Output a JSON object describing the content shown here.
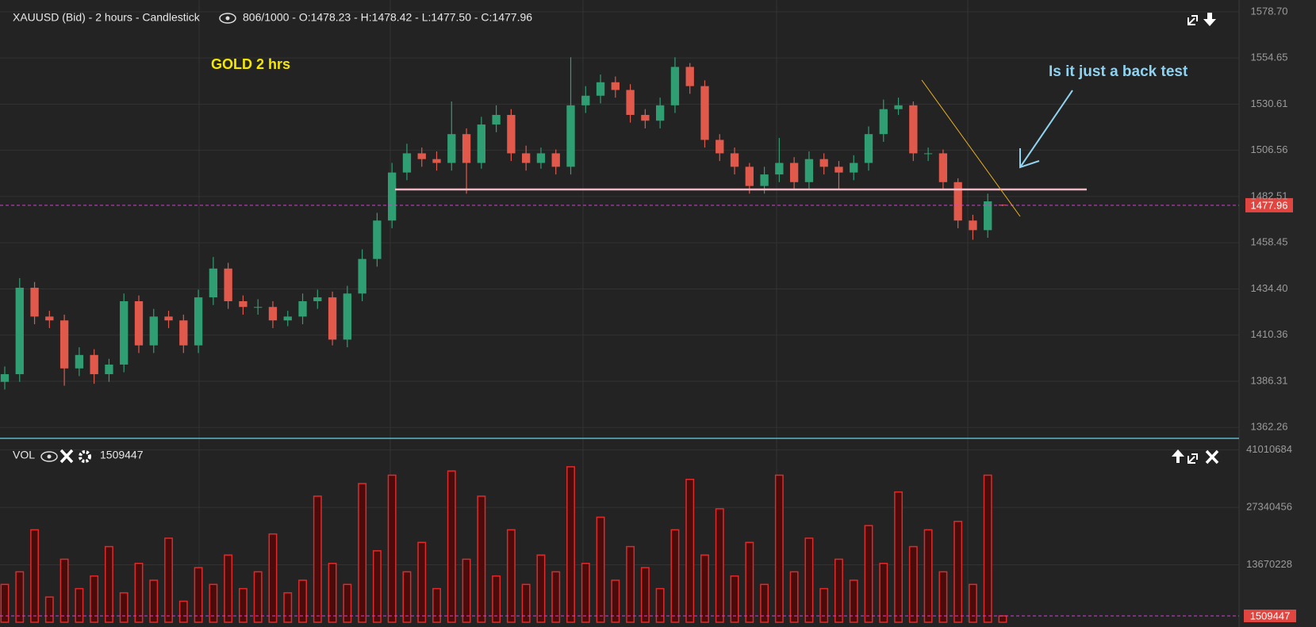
{
  "chart_data": [
    {
      "type": "candlestick",
      "title": "XAUUSD (Bid) - 2 hours - Candlestick",
      "info": "806/1000 - O:1478.23 - H:1478.42 - L:1477.50 - C:1477.96",
      "annotations": [
        "GOLD  2 hrs",
        "Is it just a back test"
      ],
      "up_color": "#2f9e72",
      "down_color": "#e0594b",
      "ylim": [
        1357,
        1583.6
      ],
      "yticks": [
        {
          "value": 1578.7,
          "label": "1578.70"
        },
        1554.65,
        1530.61,
        1506.56,
        1482.51,
        1458.45,
        {
          "value": 1434.4,
          "label": "1434.40"
        },
        1410.36,
        1386.31,
        1362.26
      ],
      "open": [
        1386,
        1390,
        1435,
        1420,
        1418,
        1393,
        1400,
        1390,
        1395,
        1428,
        1405,
        1420,
        1418,
        1405,
        1430,
        1445,
        1428,
        1425,
        1425,
        1418,
        1420,
        1428,
        1430,
        1408,
        1432,
        1450,
        1470,
        1495,
        1505,
        1502,
        1500,
        1515,
        1500,
        1520,
        1525,
        1505,
        1500,
        1505,
        1498,
        1530,
        1535,
        1542,
        1538,
        1525,
        1522,
        1530,
        1550,
        1540,
        1512,
        1505,
        1498,
        1488,
        1494,
        1500,
        1490,
        1502,
        1498,
        1495,
        1500,
        1515,
        1528,
        1530,
        1505,
        1505,
        1490,
        1470,
        1465,
        1478.23
      ],
      "high": [
        1394,
        1440,
        1438,
        1423,
        1421,
        1404,
        1403,
        1398,
        1432,
        1431,
        1424,
        1423,
        1421,
        1434,
        1451,
        1448,
        1431,
        1429,
        1428,
        1423,
        1432,
        1434,
        1433,
        1436,
        1455,
        1474,
        1500,
        1510,
        1508,
        1506,
        1532,
        1518,
        1524,
        1530,
        1528,
        1509,
        1508,
        1507,
        1555,
        1540,
        1546,
        1545,
        1541,
        1528,
        1534,
        1555,
        1552,
        1543,
        1515,
        1508,
        1500,
        1498,
        1513,
        1503,
        1506,
        1505,
        1501,
        1504,
        1519,
        1533,
        1534,
        1532,
        1508,
        1507,
        1492,
        1473,
        1484,
        1478.42
      ],
      "low": [
        1382,
        1386,
        1416,
        1414,
        1384,
        1389,
        1385,
        1386,
        1391,
        1401,
        1401,
        1414,
        1401,
        1401,
        1426,
        1424,
        1421,
        1421,
        1414,
        1415,
        1416,
        1424,
        1405,
        1404,
        1428,
        1446,
        1466,
        1491,
        1498,
        1496,
        1496,
        1484,
        1497,
        1516,
        1501,
        1496,
        1497,
        1494,
        1494,
        1526,
        1531,
        1534,
        1521,
        1518,
        1518,
        1526,
        1536,
        1508,
        1501,
        1494,
        1484,
        1484,
        1490,
        1486,
        1486,
        1494,
        1486,
        1491,
        1496,
        1511,
        1525,
        1501,
        1501,
        1486,
        1466,
        1460,
        1461,
        1477.5
      ],
      "close": [
        1390,
        1435,
        1420,
        1418,
        1393,
        1400,
        1390,
        1395,
        1428,
        1405,
        1420,
        1418,
        1405,
        1430,
        1445,
        1428,
        1425,
        1425,
        1418,
        1420,
        1428,
        1430,
        1408,
        1432,
        1450,
        1470,
        1495,
        1505,
        1502,
        1500,
        1515,
        1500,
        1520,
        1525,
        1505,
        1500,
        1505,
        1498,
        1530,
        1535,
        1542,
        1538,
        1525,
        1522,
        1530,
        1550,
        1540,
        1512,
        1505,
        1498,
        1488,
        1494,
        1500,
        1490,
        1502,
        1498,
        1495,
        1500,
        1515,
        1528,
        1530,
        1505,
        1505,
        1490,
        1470,
        1465,
        1480,
        1477.96
      ]
    },
    {
      "type": "bar",
      "title": "VOL",
      "color": "#e02a2a",
      "ylim": [
        0,
        43200000
      ],
      "yticks": [
        41010684,
        27340456,
        13670228
      ],
      "values": [
        9000000,
        12000000,
        22000000,
        6000000,
        15000000,
        8000000,
        11000000,
        18000000,
        7000000,
        14000000,
        10000000,
        20000000,
        5000000,
        13000000,
        9000000,
        16000000,
        8000000,
        12000000,
        21000000,
        7000000,
        10000000,
        30000000,
        14000000,
        9000000,
        33000000,
        17000000,
        35000000,
        12000000,
        19000000,
        8000000,
        36000000,
        15000000,
        30000000,
        11000000,
        22000000,
        9000000,
        16000000,
        12000000,
        37000000,
        14000000,
        25000000,
        10000000,
        18000000,
        13000000,
        8000000,
        22000000,
        34000000,
        16000000,
        27000000,
        11000000,
        19000000,
        9000000,
        35000000,
        12000000,
        20000000,
        8000000,
        15000000,
        10000000,
        23000000,
        14000000,
        31000000,
        18000000,
        22000000,
        12000000,
        24000000,
        9000000,
        35000000,
        1509447
      ]
    }
  ]
}
